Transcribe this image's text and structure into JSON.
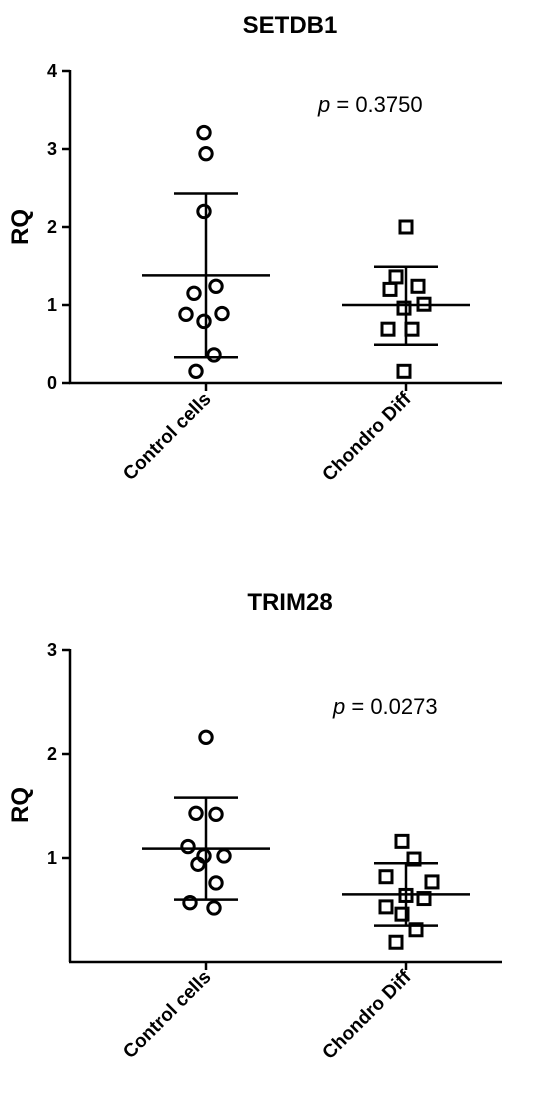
{
  "chart_data": [
    {
      "type": "scatter",
      "title": "SETDB1",
      "ylabel": "RQ",
      "xlabel": "",
      "ylim": [
        0,
        4
      ],
      "yticks": [
        0,
        1,
        2,
        3,
        4
      ],
      "categories": [
        "Control cells",
        "Chondro Diff"
      ],
      "annotation": {
        "italic": "p",
        "text": " = 0.3750"
      },
      "series": [
        {
          "marker": "circle",
          "values": [
            3.21,
            2.94,
            2.2,
            1.24,
            1.15,
            0.89,
            0.88,
            0.79,
            0.36,
            0.15
          ],
          "mean": 1.38,
          "sd_low": 0.33,
          "sd_high": 2.43
        },
        {
          "marker": "square",
          "values": [
            2.0,
            1.36,
            1.24,
            1.2,
            1.01,
            0.96,
            0.69,
            0.69,
            0.15
          ],
          "mean": 1.0,
          "sd_low": 0.49,
          "sd_high": 1.49
        }
      ]
    },
    {
      "type": "scatter",
      "title": "TRIM28",
      "ylabel": "RQ",
      "xlabel": "",
      "ylim": [
        0,
        3
      ],
      "yticks": [
        1,
        2,
        3
      ],
      "categories": [
        "Control cells",
        "Chondro Diff"
      ],
      "annotation": {
        "italic": "p",
        "text": " = 0.0273"
      },
      "series": [
        {
          "marker": "circle",
          "values": [
            2.16,
            1.43,
            1.42,
            1.11,
            1.02,
            1.02,
            0.94,
            0.76,
            0.57,
            0.52
          ],
          "mean": 1.09,
          "sd_low": 0.6,
          "sd_high": 1.58
        },
        {
          "marker": "square",
          "values": [
            1.16,
            0.99,
            0.82,
            0.77,
            0.64,
            0.61,
            0.53,
            0.46,
            0.31,
            0.19
          ],
          "mean": 0.65,
          "sd_low": 0.35,
          "sd_high": 0.95
        }
      ]
    }
  ]
}
